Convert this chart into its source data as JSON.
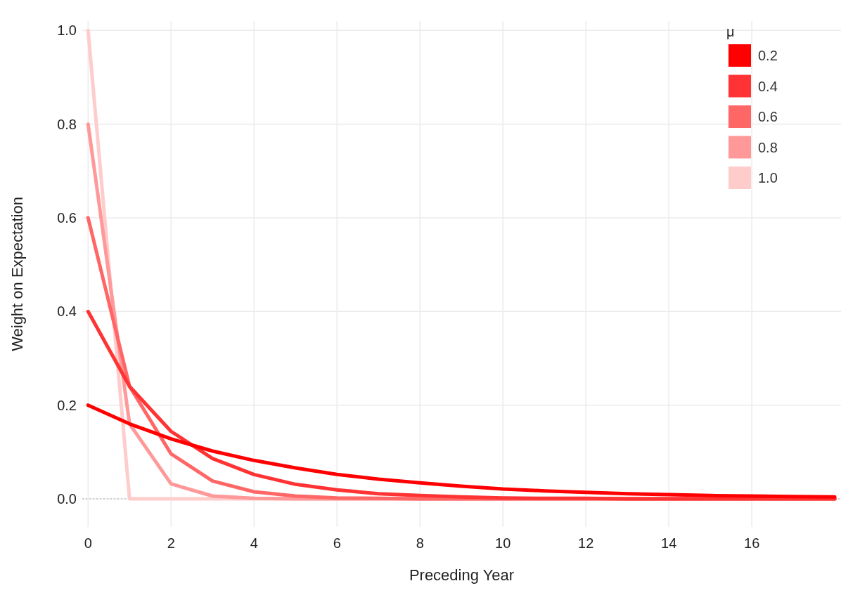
{
  "chart_data": {
    "type": "line",
    "xlabel": "Preceding Year",
    "ylabel": "Weight on Expectation",
    "legend_title": "μ",
    "legend": "top right",
    "grid": true,
    "x": [
      0,
      1,
      2,
      3,
      4,
      5,
      6,
      7,
      8,
      9,
      10,
      11,
      12,
      13,
      14,
      15,
      16,
      17,
      18
    ],
    "series": [
      {
        "name": "0.2",
        "color": "#ff0000",
        "values": [
          0.2,
          0.16,
          0.128,
          0.102,
          0.082,
          0.066,
          0.052,
          0.042,
          0.034,
          0.027,
          0.021,
          0.017,
          0.014,
          0.011,
          0.009,
          0.007,
          0.006,
          0.005,
          0.004
        ]
      },
      {
        "name": "0.4",
        "color": "#ff3333",
        "values": [
          0.4,
          0.24,
          0.144,
          0.086,
          0.052,
          0.031,
          0.019,
          0.011,
          0.007,
          0.004,
          0.002,
          0.001,
          0.001,
          0,
          0,
          0,
          0,
          0,
          0
        ]
      },
      {
        "name": "0.6",
        "color": "#ff6666",
        "values": [
          0.6,
          0.24,
          0.096,
          0.038,
          0.015,
          0.006,
          0.002,
          0.001,
          0,
          0,
          0,
          0,
          0,
          0,
          0,
          0,
          0,
          0,
          0
        ]
      },
      {
        "name": "0.8",
        "color": "#ff9999",
        "values": [
          0.8,
          0.16,
          0.032,
          0.006,
          0.001,
          0,
          0,
          0,
          0,
          0,
          0,
          0,
          0,
          0,
          0,
          0,
          0,
          0,
          0
        ]
      },
      {
        "name": "1.0",
        "color": "#ffcccc",
        "values": [
          1,
          0,
          0,
          0,
          0,
          0,
          0,
          0,
          0,
          0,
          0,
          0,
          0,
          0,
          0,
          0,
          0,
          0,
          0
        ]
      }
    ],
    "xlim": [
      -0.14,
      18.15
    ],
    "xticks": [
      0,
      2,
      4,
      6,
      8,
      10,
      12,
      14,
      16
    ],
    "ylim": [
      -0.06,
      1.02
    ],
    "yticks": [
      {
        "value": 0,
        "label": "0.0"
      },
      {
        "value": 0.2,
        "label": "0.2"
      },
      {
        "value": 0.4,
        "label": "0.4"
      },
      {
        "value": 0.6,
        "label": "0.6"
      },
      {
        "value": 0.8,
        "label": "0.8"
      },
      {
        "value": 1,
        "label": "1.0"
      }
    ],
    "ref_lines": [
      {
        "axis": "y",
        "value": 0,
        "color": "#aaaaaa",
        "line_style": "dotted"
      }
    ]
  }
}
